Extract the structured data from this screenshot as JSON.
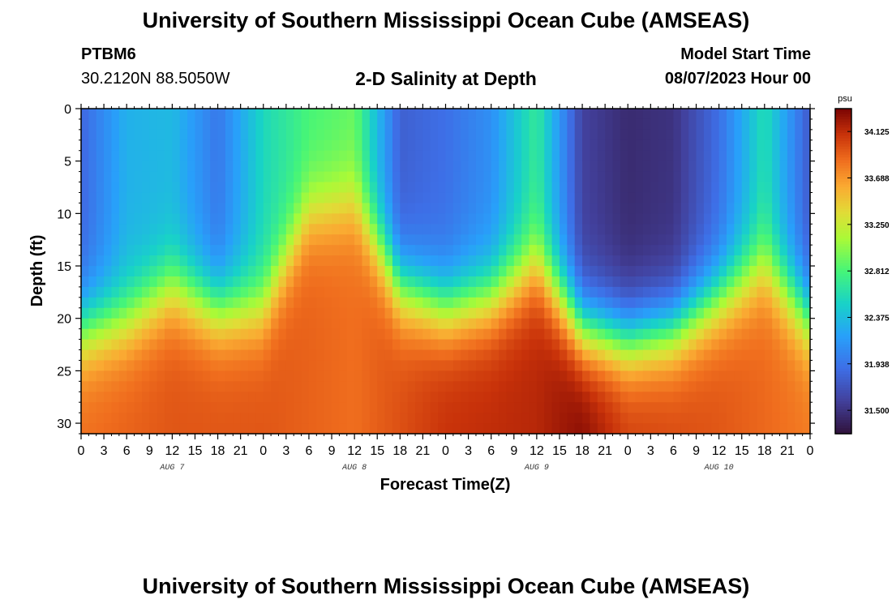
{
  "header": {
    "title": "University of Southern Mississippi Ocean Cube (AMSEAS)",
    "station": "PTBM6",
    "coords": "30.2120N  88.5050W",
    "subtitle": "2-D Salinity at Depth",
    "start_label": "Model Start Time",
    "start_value": "08/07/2023 Hour 00"
  },
  "footer": {
    "title": "University of Southern Mississippi Ocean Cube (AMSEAS)"
  },
  "chart_data": {
    "type": "heatmap",
    "title": "2-D Salinity at Depth",
    "xlabel": "Forecast Time(Z)",
    "ylabel": "Depth (ft)",
    "xlim": [
      0,
      96
    ],
    "ylim": [
      0,
      31
    ],
    "x_tick_values": [
      0,
      3,
      6,
      9,
      12,
      15,
      18,
      21,
      24,
      27,
      30,
      33,
      36,
      39,
      42,
      45,
      48,
      51,
      54,
      57,
      60,
      63,
      66,
      69,
      72,
      75,
      78,
      81,
      84,
      87,
      90,
      93,
      96
    ],
    "x_tick_labels": [
      "0",
      "3",
      "6",
      "9",
      "12",
      "15",
      "18",
      "21",
      "0",
      "3",
      "6",
      "9",
      "12",
      "15",
      "18",
      "21",
      "0",
      "3",
      "6",
      "9",
      "12",
      "15",
      "18",
      "21",
      "0",
      "3",
      "6",
      "9",
      "12",
      "15",
      "18",
      "21",
      "0"
    ],
    "day_labels": [
      {
        "x": 12,
        "label": "AUG 7"
      },
      {
        "x": 36,
        "label": "AUG 8"
      },
      {
        "x": 60,
        "label": "AUG 9"
      },
      {
        "x": 84,
        "label": "AUG 10"
      }
    ],
    "y_ticks": [
      0,
      5,
      10,
      15,
      20,
      25,
      30
    ],
    "colorbar": {
      "unit": "psu",
      "min": 31.28,
      "max": 34.34,
      "ticks": [
        34.125,
        33.688,
        33.25,
        32.812,
        32.375,
        31.938,
        31.5
      ],
      "tick_labels": [
        "34.125",
        "33.688",
        "33.250",
        "32.812",
        "32.375",
        "31.938",
        "31.500"
      ]
    },
    "surface_salinity_profile": [
      {
        "hour": 0,
        "surface": 31.85,
        "mixed_depth": 21
      },
      {
        "hour": 6,
        "surface": 32.3,
        "mixed_depth": 20
      },
      {
        "hour": 12,
        "surface": 32.35,
        "mixed_depth": 17
      },
      {
        "hour": 18,
        "surface": 31.95,
        "mixed_depth": 19
      },
      {
        "hour": 24,
        "surface": 32.55,
        "mixed_depth": 19
      },
      {
        "hour": 30,
        "surface": 32.8,
        "mixed_depth": 10
      },
      {
        "hour": 36,
        "surface": 32.9,
        "mixed_depth": 9
      },
      {
        "hour": 42,
        "surface": 31.8,
        "mixed_depth": 17
      },
      {
        "hour": 48,
        "surface": 31.9,
        "mixed_depth": 19
      },
      {
        "hour": 54,
        "surface": 32.1,
        "mixed_depth": 18
      },
      {
        "hour": 60,
        "surface": 32.7,
        "mixed_depth": 15
      },
      {
        "hour": 66,
        "surface": 31.6,
        "mixed_depth": 21
      },
      {
        "hour": 72,
        "surface": 31.45,
        "mixed_depth": 22
      },
      {
        "hour": 78,
        "surface": 31.5,
        "mixed_depth": 21
      },
      {
        "hour": 84,
        "surface": 31.9,
        "mixed_depth": 18
      },
      {
        "hour": 90,
        "surface": 32.6,
        "mixed_depth": 15
      },
      {
        "hour": 96,
        "surface": 31.75,
        "mixed_depth": 20
      }
    ],
    "bottom_salinity_profile": [
      {
        "hour": 0,
        "value": 33.85
      },
      {
        "hour": 12,
        "value": 33.95
      },
      {
        "hour": 24,
        "value": 33.95
      },
      {
        "hour": 36,
        "value": 33.85
      },
      {
        "hour": 48,
        "value": 34.1
      },
      {
        "hour": 60,
        "value": 34.15
      },
      {
        "hour": 66,
        "value": 34.3
      },
      {
        "hour": 72,
        "value": 34.05
      },
      {
        "hour": 84,
        "value": 33.95
      },
      {
        "hour": 96,
        "value": 33.8
      }
    ]
  }
}
